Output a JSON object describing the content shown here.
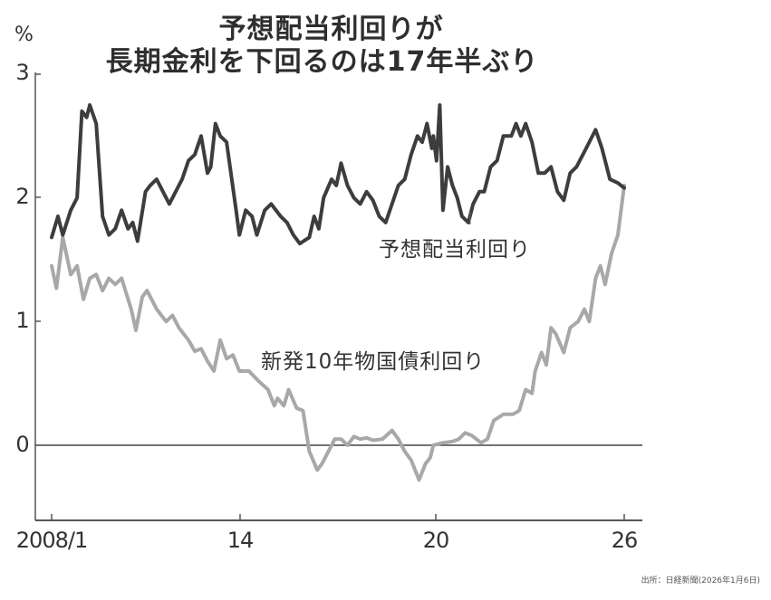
{
  "chart_data": {
    "type": "line",
    "title": "予想配当利回りが長期金利を下回るのは17年半ぶり",
    "title_lines": [
      "予想配当利回りが",
      "長期金利を下回るのは17年半ぶり"
    ],
    "xlabel": "",
    "ylabel": "%",
    "ylim": [
      -0.6,
      3
    ],
    "xlim": [
      2007.6,
      2026.5
    ],
    "y_ticks": [
      0,
      1,
      2,
      3
    ],
    "x_ticks": [
      {
        "value": 2008.0,
        "label": "2008/1"
      },
      {
        "value": 2014.0,
        "label": "14"
      },
      {
        "value": 2020.0,
        "label": "20"
      },
      {
        "value": 2026.0,
        "label": "26"
      }
    ],
    "grid": false,
    "zero_line": true,
    "legend": "inline labels",
    "series": [
      {
        "name": "予想配当利回り",
        "color": "#3d3d3d",
        "points": [
          [
            2008.0,
            1.68
          ],
          [
            2008.2,
            1.85
          ],
          [
            2008.35,
            1.7
          ],
          [
            2008.6,
            1.9
          ],
          [
            2008.8,
            2.0
          ],
          [
            2008.95,
            2.7
          ],
          [
            2009.1,
            2.65
          ],
          [
            2009.2,
            2.75
          ],
          [
            2009.4,
            2.6
          ],
          [
            2009.6,
            1.85
          ],
          [
            2009.8,
            1.7
          ],
          [
            2010.0,
            1.75
          ],
          [
            2010.2,
            1.9
          ],
          [
            2010.4,
            1.75
          ],
          [
            2010.55,
            1.8
          ],
          [
            2010.7,
            1.65
          ],
          [
            2010.95,
            2.05
          ],
          [
            2011.1,
            2.1
          ],
          [
            2011.3,
            2.15
          ],
          [
            2011.5,
            2.05
          ],
          [
            2011.7,
            1.95
          ],
          [
            2011.9,
            2.05
          ],
          [
            2012.1,
            2.15
          ],
          [
            2012.3,
            2.3
          ],
          [
            2012.5,
            2.35
          ],
          [
            2012.7,
            2.5
          ],
          [
            2012.9,
            2.2
          ],
          [
            2013.0,
            2.25
          ],
          [
            2013.15,
            2.6
          ],
          [
            2013.3,
            2.5
          ],
          [
            2013.5,
            2.45
          ],
          [
            2013.8,
            1.9
          ],
          [
            2013.9,
            1.7
          ],
          [
            2014.1,
            1.9
          ],
          [
            2014.3,
            1.85
          ],
          [
            2014.45,
            1.7
          ],
          [
            2014.7,
            1.9
          ],
          [
            2014.9,
            1.95
          ],
          [
            2015.2,
            1.85
          ],
          [
            2015.4,
            1.8
          ],
          [
            2015.6,
            1.7
          ],
          [
            2015.8,
            1.63
          ],
          [
            2016.1,
            1.68
          ],
          [
            2016.25,
            1.85
          ],
          [
            2016.4,
            1.75
          ],
          [
            2016.55,
            2.0
          ],
          [
            2016.8,
            2.15
          ],
          [
            2016.95,
            2.1
          ],
          [
            2017.1,
            2.28
          ],
          [
            2017.3,
            2.1
          ],
          [
            2017.5,
            2.0
          ],
          [
            2017.7,
            1.95
          ],
          [
            2017.9,
            2.05
          ],
          [
            2018.1,
            1.98
          ],
          [
            2018.3,
            1.85
          ],
          [
            2018.5,
            1.8
          ],
          [
            2018.7,
            1.95
          ],
          [
            2018.9,
            2.1
          ],
          [
            2019.1,
            2.15
          ],
          [
            2019.3,
            2.35
          ],
          [
            2019.5,
            2.5
          ],
          [
            2019.65,
            2.45
          ],
          [
            2019.8,
            2.6
          ],
          [
            2019.95,
            2.4
          ],
          [
            2020.0,
            2.5
          ],
          [
            2020.1,
            2.3
          ],
          [
            2020.2,
            2.75
          ],
          [
            2020.3,
            1.9
          ],
          [
            2020.45,
            2.25
          ],
          [
            2020.6,
            2.1
          ],
          [
            2020.75,
            2.0
          ],
          [
            2020.9,
            1.85
          ],
          [
            2021.1,
            1.8
          ],
          [
            2021.25,
            1.95
          ],
          [
            2021.45,
            2.05
          ],
          [
            2021.6,
            2.05
          ],
          [
            2021.8,
            2.25
          ],
          [
            2022.0,
            2.3
          ],
          [
            2022.2,
            2.5
          ],
          [
            2022.45,
            2.5
          ],
          [
            2022.6,
            2.6
          ],
          [
            2022.75,
            2.5
          ],
          [
            2022.9,
            2.6
          ],
          [
            2023.1,
            2.45
          ],
          [
            2023.3,
            2.2
          ],
          [
            2023.5,
            2.2
          ],
          [
            2023.7,
            2.25
          ],
          [
            2023.9,
            2.05
          ],
          [
            2024.1,
            1.98
          ],
          [
            2024.3,
            2.2
          ],
          [
            2024.5,
            2.25
          ],
          [
            2024.7,
            2.35
          ],
          [
            2024.9,
            2.45
          ],
          [
            2025.1,
            2.55
          ],
          [
            2025.3,
            2.4
          ],
          [
            2025.55,
            2.15
          ],
          [
            2025.8,
            2.12
          ],
          [
            2026.0,
            2.08
          ]
        ]
      },
      {
        "name": "新発10年物国債利回り",
        "color": "#a8a8a8",
        "points": [
          [
            2008.0,
            1.45
          ],
          [
            2008.15,
            1.27
          ],
          [
            2008.35,
            1.68
          ],
          [
            2008.6,
            1.38
          ],
          [
            2008.8,
            1.45
          ],
          [
            2009.0,
            1.18
          ],
          [
            2009.2,
            1.35
          ],
          [
            2009.4,
            1.38
          ],
          [
            2009.6,
            1.25
          ],
          [
            2009.8,
            1.35
          ],
          [
            2010.0,
            1.3
          ],
          [
            2010.2,
            1.35
          ],
          [
            2010.5,
            1.1
          ],
          [
            2010.65,
            0.93
          ],
          [
            2010.85,
            1.2
          ],
          [
            2011.0,
            1.25
          ],
          [
            2011.3,
            1.1
          ],
          [
            2011.6,
            1.0
          ],
          [
            2011.8,
            1.05
          ],
          [
            2012.0,
            0.95
          ],
          [
            2012.3,
            0.85
          ],
          [
            2012.5,
            0.76
          ],
          [
            2012.7,
            0.78
          ],
          [
            2012.9,
            0.68
          ],
          [
            2013.1,
            0.6
          ],
          [
            2013.3,
            0.85
          ],
          [
            2013.5,
            0.7
          ],
          [
            2013.7,
            0.73
          ],
          [
            2013.9,
            0.6
          ],
          [
            2014.2,
            0.6
          ],
          [
            2014.5,
            0.52
          ],
          [
            2014.8,
            0.45
          ],
          [
            2015.0,
            0.32
          ],
          [
            2015.1,
            0.38
          ],
          [
            2015.3,
            0.32
          ],
          [
            2015.45,
            0.45
          ],
          [
            2015.7,
            0.3
          ],
          [
            2015.9,
            0.28
          ],
          [
            2016.1,
            -0.05
          ],
          [
            2016.35,
            -0.2
          ],
          [
            2016.5,
            -0.15
          ],
          [
            2016.7,
            -0.05
          ],
          [
            2016.9,
            0.05
          ],
          [
            2017.1,
            0.05
          ],
          [
            2017.3,
            0.0
          ],
          [
            2017.5,
            0.07
          ],
          [
            2017.7,
            0.05
          ],
          [
            2017.9,
            0.06
          ],
          [
            2018.1,
            0.04
          ],
          [
            2018.4,
            0.05
          ],
          [
            2018.7,
            0.12
          ],
          [
            2018.9,
            0.05
          ],
          [
            2019.1,
            -0.05
          ],
          [
            2019.3,
            -0.12
          ],
          [
            2019.55,
            -0.28
          ],
          [
            2019.75,
            -0.15
          ],
          [
            2019.9,
            -0.1
          ],
          [
            2020.0,
            0.0
          ],
          [
            2020.3,
            0.02
          ],
          [
            2020.6,
            0.03
          ],
          [
            2020.8,
            0.05
          ],
          [
            2021.0,
            0.1
          ],
          [
            2021.2,
            0.08
          ],
          [
            2021.5,
            0.02
          ],
          [
            2021.7,
            0.05
          ],
          [
            2021.9,
            0.2
          ],
          [
            2022.2,
            0.25
          ],
          [
            2022.5,
            0.25
          ],
          [
            2022.7,
            0.28
          ],
          [
            2022.9,
            0.45
          ],
          [
            2023.1,
            0.42
          ],
          [
            2023.2,
            0.6
          ],
          [
            2023.4,
            0.75
          ],
          [
            2023.55,
            0.65
          ],
          [
            2023.7,
            0.95
          ],
          [
            2023.85,
            0.9
          ],
          [
            2024.1,
            0.75
          ],
          [
            2024.3,
            0.95
          ],
          [
            2024.55,
            1.0
          ],
          [
            2024.75,
            1.1
          ],
          [
            2024.9,
            1.0
          ],
          [
            2025.1,
            1.35
          ],
          [
            2025.25,
            1.45
          ],
          [
            2025.4,
            1.3
          ],
          [
            2025.6,
            1.55
          ],
          [
            2025.8,
            1.7
          ],
          [
            2026.0,
            2.1
          ]
        ]
      }
    ],
    "annotations": [
      {
        "text": "予想配当利回り",
        "x": 2021.0,
        "y": 1.5
      },
      {
        "text": "新発10年物国債利回り",
        "x": 2017.0,
        "y": 0.6
      }
    ],
    "source": "出所：日経新聞(2026年1月6日)"
  },
  "header": {
    "title_line1": "予想配当利回りが",
    "title_line2": "長期金利を下回るのは17年半ぶり"
  },
  "axes": {
    "unit": "%",
    "y_labels": [
      "3",
      "2",
      "1",
      "0"
    ],
    "x_labels": [
      "2008/1",
      "14",
      "20",
      "26"
    ]
  },
  "labels": {
    "dividend": "予想配当利回り",
    "jgb": "新発10年物国債利回り"
  },
  "footer": {
    "source": "出所：日経新聞(2026年1月6日)"
  }
}
